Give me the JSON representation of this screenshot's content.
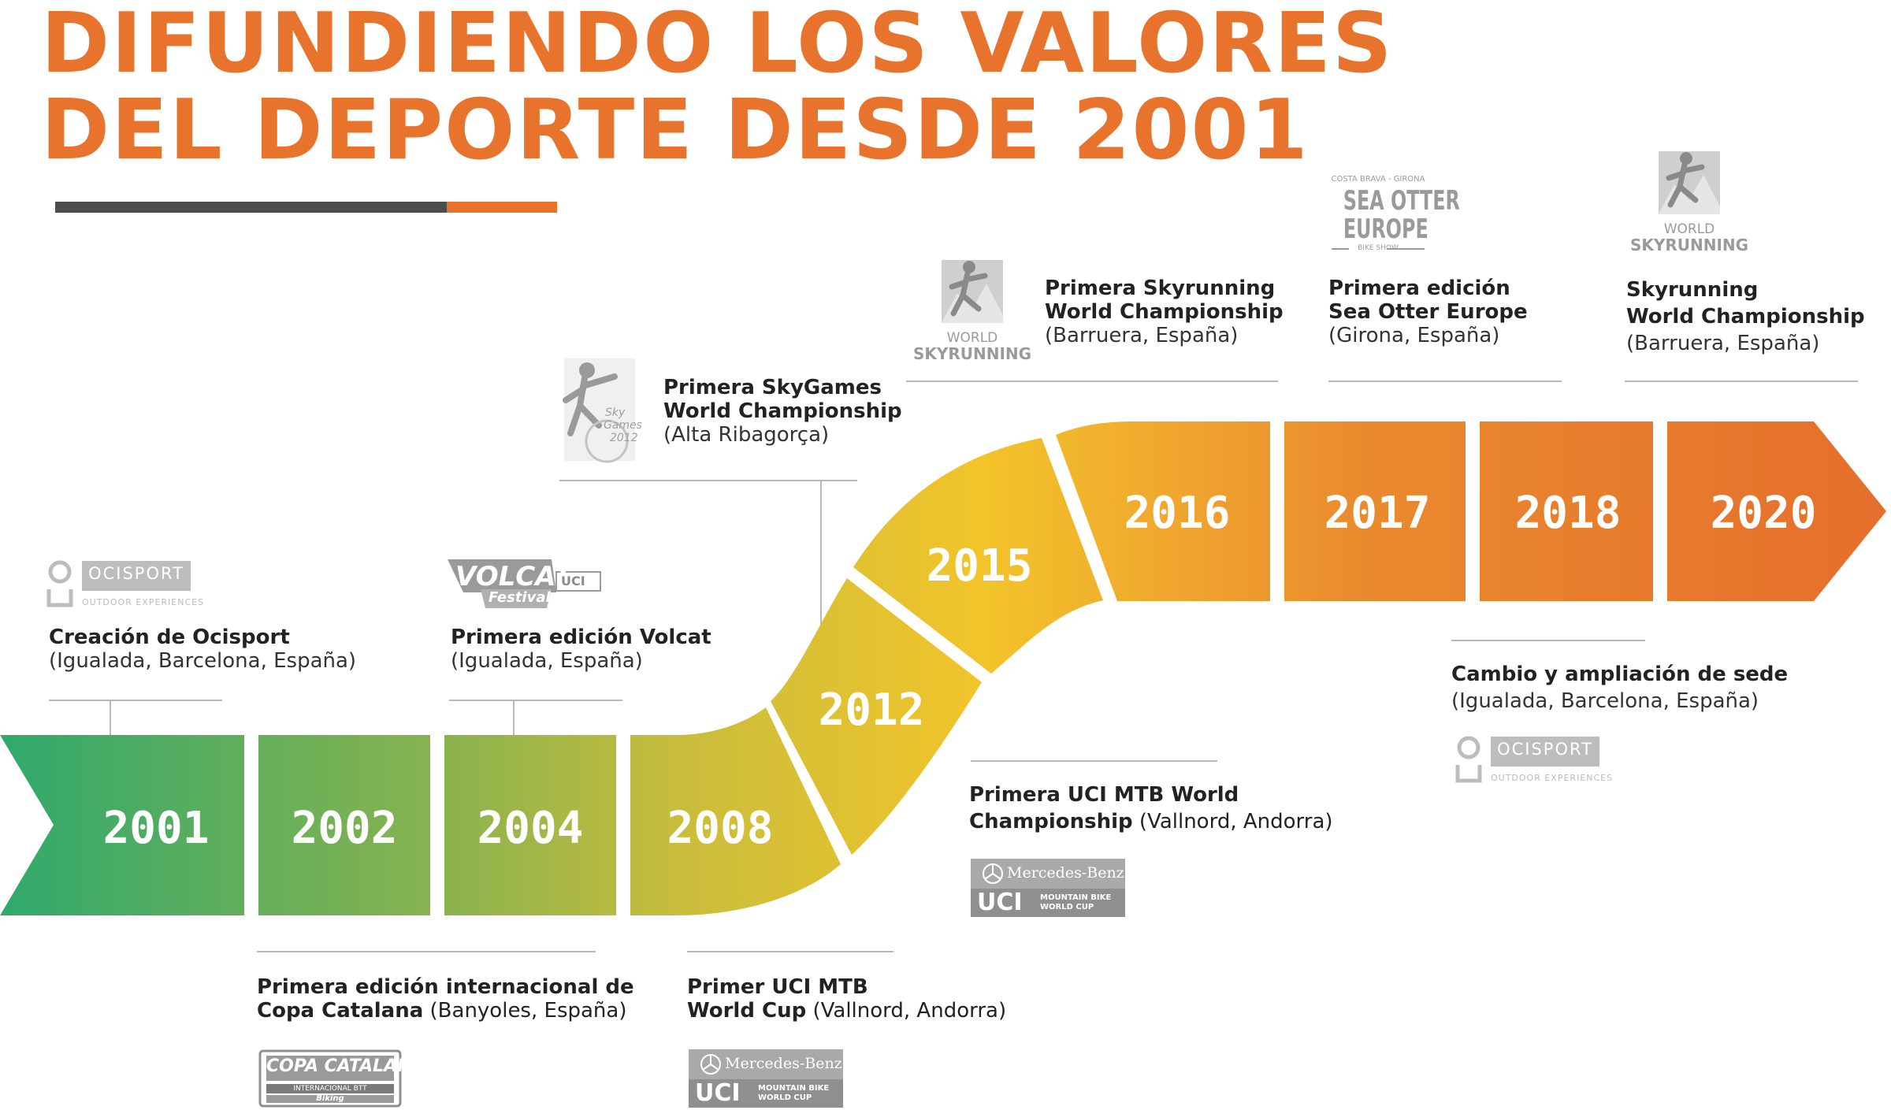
{
  "title": {
    "line1": "DIFUNDIENDO LOS VALORES",
    "line2": "DEL DEPORTE DESDE 2001"
  },
  "colors": {
    "accent": "#e8732d",
    "dark_bar": "#4d4d4d",
    "green": "#33a86a",
    "yellow": "#f2c42a",
    "orange": "#e8732d"
  },
  "years": [
    "2001",
    "2002",
    "2004",
    "2008",
    "2012",
    "2015",
    "2016",
    "2017",
    "2018",
    "2020"
  ],
  "events": {
    "e2001": {
      "bold": "Creación de Ocisport",
      "sub": "(Igualada, Barcelona, España)"
    },
    "e2002": {
      "bold1": "Primera edición internacional de",
      "bold2": "Copa Catalana",
      "sub": " (Banyoles, España)"
    },
    "e2004": {
      "bold": "Primera edición Volcat",
      "sub": "(Igualada, España)"
    },
    "e2008": {
      "bold1": "Primer UCI MTB",
      "bold2": "World Cup",
      "sub": " (Vallnord, Andorra)"
    },
    "e2012": {
      "bold1": "Primera SkyGames",
      "bold2": "World Championship",
      "sub": "(Alta Ribagorça)"
    },
    "e2015": {
      "bold1": "Primera UCI MTB World",
      "bold2": "Championship",
      "sub": " (Vallnord, Andorra)"
    },
    "e2016": {
      "bold1": "Primera Skyrunning",
      "bold2": "World Championship",
      "sub": "(Barruera, España)"
    },
    "e2017": {
      "bold1": "Primera edición",
      "bold2": "Sea Otter Europe",
      "sub": "(Girona, España)"
    },
    "e2018": {
      "bold": "Cambio y ampliación de sede",
      "sub": "(Igualada, Barcelona, España)"
    },
    "e2020": {
      "bold1": "Skyrunning",
      "bold2": "World Championship",
      "sub": "(Barruera, España)"
    }
  },
  "logos": {
    "ocisport": {
      "name": "OCISPORT",
      "tagline": "OUTDOOR EXPERIENCES"
    },
    "volcat": {
      "name": "VOLCAT",
      "sub": "Festival",
      "uci": "UCI"
    },
    "copa": {
      "name": "COPA CATALANA",
      "sub": "INTERNACIONAL BTT",
      "sponsor": "Biking"
    },
    "mercedes": {
      "brand": "Mercedes-Benz",
      "uci": "UCI",
      "line1": "MOUNTAIN BIKE",
      "line2": "WORLD CUP"
    },
    "skygames": {
      "line1": "Sky",
      "line2": "Games",
      "year": "2012"
    },
    "skyrunning": {
      "line1": "WORLD",
      "line2": "SKYRUNNING"
    },
    "seaotter": {
      "top": "COSTA BRAVA - GIRONA",
      "line1": "SEA OTTER",
      "line2": "EUROPE",
      "bottom": "BIKE SHOW"
    }
  }
}
